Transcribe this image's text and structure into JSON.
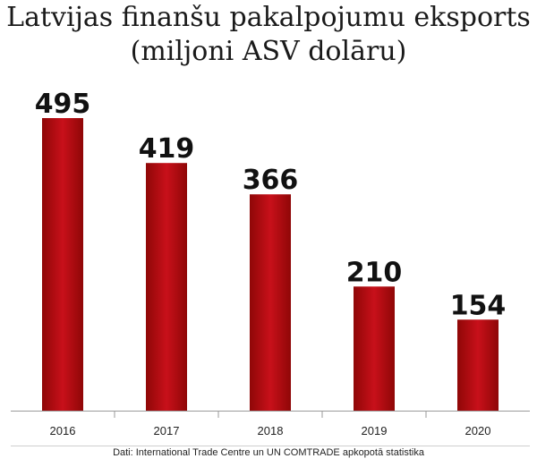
{
  "title": "Latvijas finanšu pakalpojumu eksports",
  "subtitle": "(miljoni ASV dolāru)",
  "source": "Dati: International Trade Centre un UN COMTRADE apkopotā statistika",
  "colors": {
    "bar_dark": "#8f0707",
    "bar_light": "#c8101a",
    "axis": "#9a9a9a",
    "divider": "#cfcfcf",
    "text": "#111111"
  },
  "chart_data": {
    "type": "bar",
    "title": "Latvijas finanšu pakalpojumu eksports",
    "subtitle": "(miljoni ASV dolāru)",
    "categories": [
      "2016",
      "2017",
      "2018",
      "2019",
      "2020"
    ],
    "values": [
      495,
      419,
      366,
      210,
      154
    ],
    "value_labels": [
      "495",
      "419",
      "366",
      "210",
      "154"
    ],
    "xlabel": "",
    "ylabel": "",
    "ylim": [
      0,
      495
    ],
    "grid": false,
    "legend": "none"
  }
}
